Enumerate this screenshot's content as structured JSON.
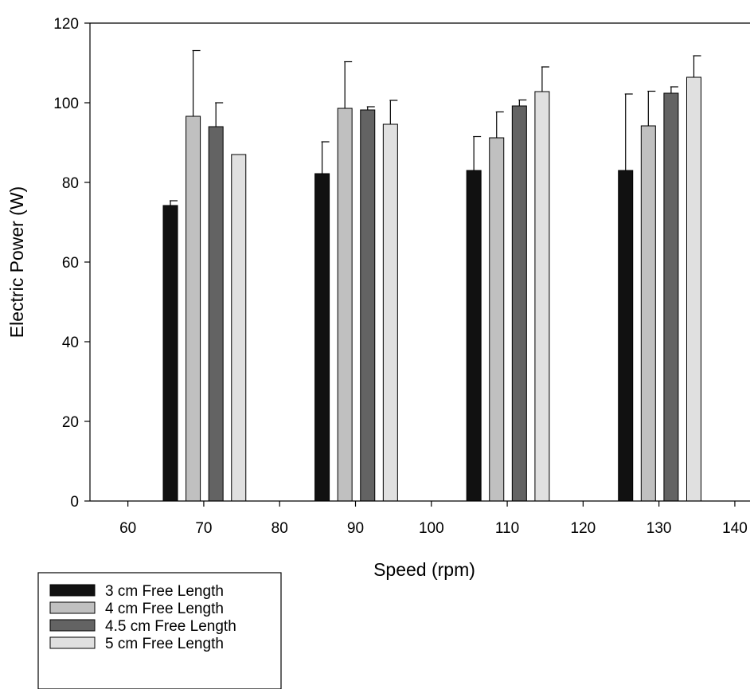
{
  "chart_data": {
    "type": "bar",
    "xlabel": "Speed (rpm)",
    "ylabel": "Electric Power (W)",
    "xlim": [
      55,
      142
    ],
    "ylim": [
      0,
      120
    ],
    "xticks": [
      "60",
      "70",
      "80",
      "90",
      "100",
      "110",
      "120",
      "130",
      "140"
    ],
    "yticks": [
      "0",
      "20",
      "40",
      "60",
      "80",
      "100",
      "120"
    ],
    "categories": [
      70,
      90,
      110,
      130
    ],
    "grid": false,
    "legend_position": "bottom-left",
    "error_bars": true,
    "series": [
      {
        "name": "3 cm Free Length",
        "color": "#111111",
        "x": [
          65.6,
          85.6,
          105.6,
          125.6
        ],
        "values": [
          74.2,
          82.2,
          83.0,
          83.0
        ],
        "errors": [
          1.2,
          8.0,
          8.5,
          19.2
        ]
      },
      {
        "name": "4 cm Free Length",
        "color": "#c0c0c0",
        "x": [
          68.6,
          88.6,
          108.6,
          128.6
        ],
        "values": [
          96.6,
          98.6,
          91.2,
          94.2
        ],
        "errors": [
          16.5,
          11.7,
          6.5,
          8.7
        ]
      },
      {
        "name": "4.5 cm Free Length",
        "color": "#636363",
        "x": [
          71.6,
          91.6,
          111.6,
          131.6
        ],
        "values": [
          94.0,
          98.2,
          99.2,
          102.4
        ],
        "errors": [
          6.0,
          0.8,
          1.5,
          1.6
        ]
      },
      {
        "name": "5 cm Free Length",
        "color": "#e0e0e0",
        "x": [
          74.6,
          94.6,
          114.6,
          134.6
        ],
        "values": [
          87.0,
          94.6,
          102.8,
          106.4
        ],
        "errors": [
          0,
          6.0,
          6.2,
          5.4
        ]
      }
    ]
  }
}
